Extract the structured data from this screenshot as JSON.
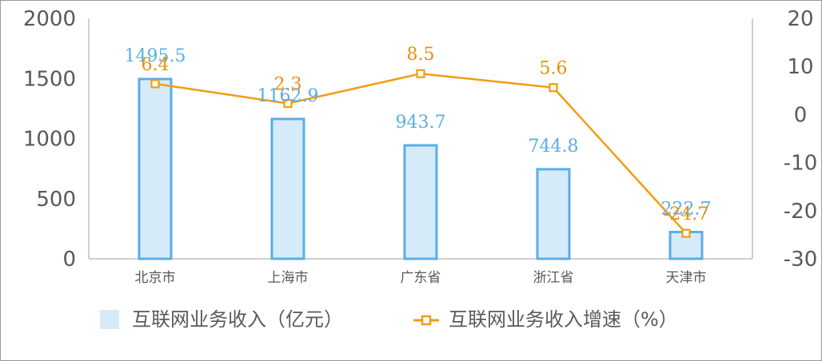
{
  "chart_data": {
    "type": "bar",
    "categories": [
      "北京市",
      "上海市",
      "广东省",
      "浙江省",
      "天津市"
    ],
    "series": [
      {
        "name": "互联网业务收入（亿元）",
        "type": "bar",
        "axis": "left",
        "values": [
          1495.5,
          1162.9,
          943.7,
          744.8,
          222.7
        ],
        "labels": [
          "1495.5",
          "1162.9",
          "943.7",
          "744.8",
          "222.7"
        ],
        "color": "#5aaee6",
        "fill": "#d6ebfa"
      },
      {
        "name": "互联网业务收入增速（%）",
        "type": "line",
        "axis": "right",
        "values": [
          6.4,
          2.3,
          8.5,
          5.6,
          -24.7
        ],
        "labels": [
          "6.4",
          "2.3",
          "8.5",
          "5.6",
          "-24.7"
        ],
        "color": "#f39c12"
      }
    ],
    "y_left": {
      "ylim": [
        0,
        2000
      ],
      "ticks": [
        "2000",
        "1500",
        "1000",
        "500",
        "0"
      ],
      "tick_values": [
        2000,
        1500,
        1000,
        500,
        0
      ]
    },
    "y_right": {
      "ylim": [
        -30,
        20
      ],
      "ticks": [
        "20",
        "10",
        "0",
        "-10",
        "-20",
        "-30"
      ],
      "tick_values": [
        20,
        10,
        0,
        -10,
        -20,
        -30
      ]
    },
    "legend": "bottom",
    "grid": false
  }
}
